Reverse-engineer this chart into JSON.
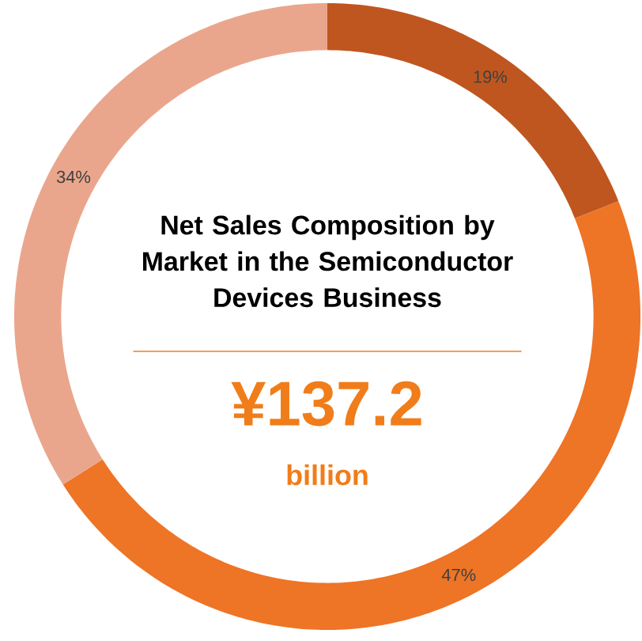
{
  "chart_data": {
    "type": "donut",
    "title": "Net Sales Composition by Market in the Semiconductor Devices Business",
    "categories": [
      null,
      null,
      null
    ],
    "values": [
      19,
      47,
      34
    ],
    "colors": [
      "#c0561f",
      "#ee7426",
      "#eaa68c"
    ],
    "value_labels": [
      "19%",
      "47%",
      "34%"
    ],
    "annotations": [
      "¥137.2",
      "billion"
    ]
  }
}
